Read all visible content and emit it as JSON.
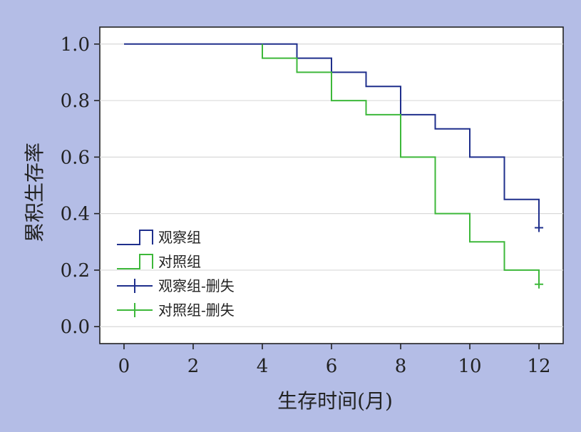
{
  "chart_data": {
    "type": "line",
    "subtype": "kaplan-meier",
    "xlabel": "生存时间(月)",
    "ylabel": "累积生存率",
    "xlim": [
      -0.7,
      12.7
    ],
    "ylim": [
      -0.06,
      1.06
    ],
    "xticks": [
      0,
      2,
      4,
      6,
      8,
      10,
      12
    ],
    "yticks": [
      0.0,
      0.2,
      0.4,
      0.6,
      0.8,
      1.0
    ],
    "ytick_labels": [
      "0.0",
      "0.2",
      "0.4",
      "0.6",
      "0.8",
      "1.0"
    ],
    "grid": "horizontal",
    "legend_position": "bottom-left",
    "legend": [
      {
        "label": "观察组",
        "kind": "step",
        "color": "#1f2f8c"
      },
      {
        "label": "对照组",
        "kind": "step",
        "color": "#3db83a"
      },
      {
        "label": "观察组-删失",
        "kind": "censor",
        "color": "#1f2f8c"
      },
      {
        "label": "对照组-删失",
        "kind": "censor",
        "color": "#3db83a"
      }
    ],
    "series": [
      {
        "name": "观察组",
        "color": "#1f2f8c",
        "points": [
          [
            0,
            1.0
          ],
          [
            5,
            1.0
          ],
          [
            5,
            0.95
          ],
          [
            6,
            0.95
          ],
          [
            6,
            0.9
          ],
          [
            7,
            0.9
          ],
          [
            7,
            0.85
          ],
          [
            8,
            0.85
          ],
          [
            8,
            0.75
          ],
          [
            9,
            0.75
          ],
          [
            9,
            0.7
          ],
          [
            10,
            0.7
          ],
          [
            10,
            0.6
          ],
          [
            11,
            0.6
          ],
          [
            11,
            0.45
          ],
          [
            12,
            0.45
          ],
          [
            12,
            0.35
          ]
        ],
        "censored": [
          [
            12,
            0.35
          ]
        ]
      },
      {
        "name": "对照组",
        "color": "#3db83a",
        "points": [
          [
            4,
            1.0
          ],
          [
            4,
            0.95
          ],
          [
            5,
            0.95
          ],
          [
            5,
            0.9
          ],
          [
            6,
            0.9
          ],
          [
            6,
            0.8
          ],
          [
            7,
            0.8
          ],
          [
            7,
            0.75
          ],
          [
            8,
            0.75
          ],
          [
            8,
            0.6
          ],
          [
            9,
            0.6
          ],
          [
            9,
            0.4
          ],
          [
            10,
            0.4
          ],
          [
            10,
            0.3
          ],
          [
            11,
            0.3
          ],
          [
            11,
            0.2
          ],
          [
            12,
            0.2
          ],
          [
            12,
            0.15
          ]
        ],
        "censored": [
          [
            12,
            0.15
          ]
        ]
      }
    ]
  }
}
